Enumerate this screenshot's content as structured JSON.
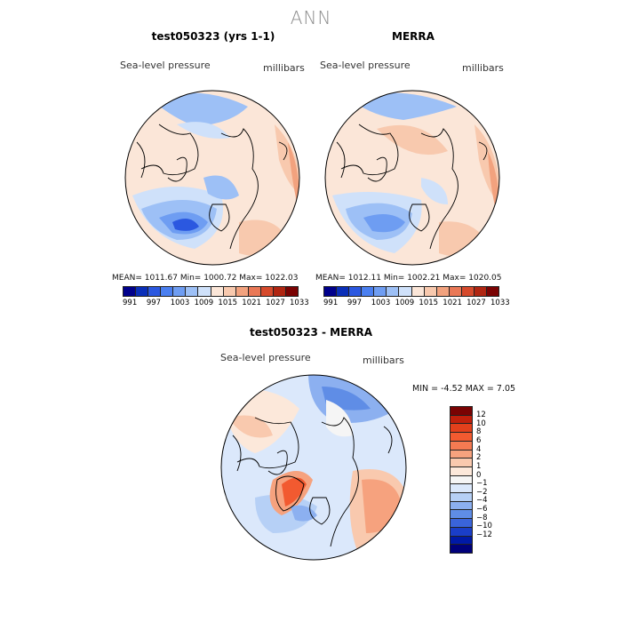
{
  "main_title": "ANN",
  "panels": [
    {
      "title": "test050323 (yrs 1-1)",
      "variable": "Sea-level pressure",
      "units": "millibars",
      "stats": "MEAN= 1011.67   Min= 1000.72   Max= 1022.03"
    },
    {
      "title": "MERRA",
      "variable": "Sea-level pressure",
      "units": "millibars",
      "stats": "MEAN= 1012.11   Min= 1002.21   Max= 1020.05"
    },
    {
      "title": "test050323 - MERRA",
      "variable": "Sea-level pressure",
      "units": "millibars",
      "stats": "MIN =   -4.52  MAX =    7.05"
    }
  ],
  "colorbar_abs": {
    "colors": [
      "#00008b",
      "#0a2fb8",
      "#2b58e0",
      "#4a7ff0",
      "#6e9df2",
      "#9dc0f6",
      "#cfe1fa",
      "#fbe6d8",
      "#f8c9ae",
      "#f2a27e",
      "#e97856",
      "#d64a2c",
      "#b02612",
      "#7a0303"
    ],
    "labels": [
      "991",
      "997",
      "1003",
      "1009",
      "1015",
      "1021",
      "1027",
      "1033"
    ]
  },
  "colorbar_diff": {
    "colors": [
      "#7a0303",
      "#c1200c",
      "#e3401c",
      "#f25a30",
      "#f47a52",
      "#f6a27e",
      "#f9c9ae",
      "#fce8da",
      "#f5f5f5",
      "#dbe8fb",
      "#b6d0f6",
      "#8cb0f0",
      "#5f8de6",
      "#3a64da",
      "#1a3ec8",
      "#0019a6",
      "#00007a"
    ],
    "labels": [
      "12",
      "10",
      "8",
      "6",
      "4",
      "2",
      "1",
      "0",
      "−1",
      "−2",
      "−4",
      "−6",
      "−8",
      "−10",
      "−12"
    ]
  }
}
